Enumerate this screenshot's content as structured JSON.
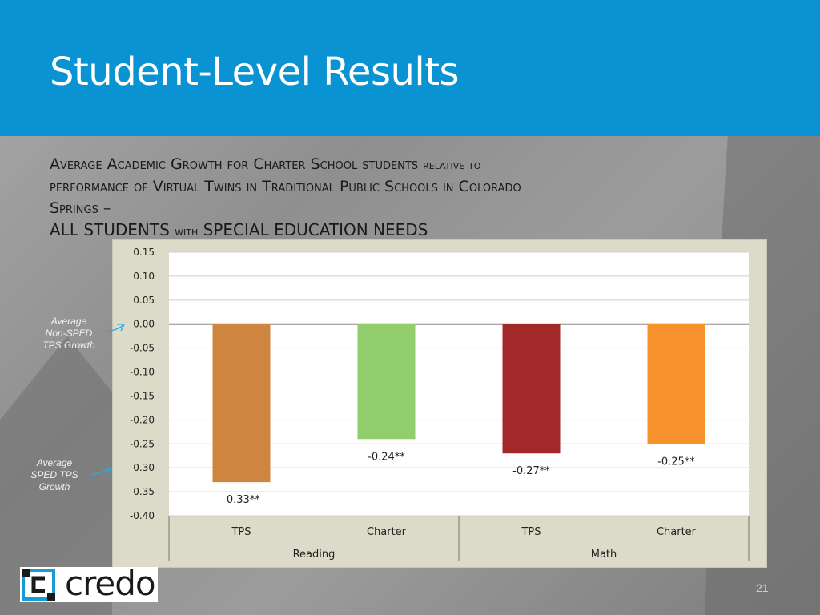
{
  "header": {
    "title": "Student-Level Results"
  },
  "subtitle": {
    "line1a": "Average Academic Growth for Charter School students",
    "line1b": "relative to",
    "line2": "performance of Virtual Twins in Traditional Public Schools in Colorado",
    "line3": "Springs –",
    "line4a": "ALL STUDENTS",
    "line4b": "with",
    "line4c": "SPECIAL EDUCATION NEEDS"
  },
  "annotations": {
    "non_sped_line1": "Average",
    "non_sped_line2": "Non-SPED",
    "non_sped_line3": "TPS Growth",
    "sped_line1": "Average",
    "sped_line2": "SPED TPS",
    "sped_line3": "Growth"
  },
  "colors": {
    "header_bg": "#0a93d2",
    "annotation_arrow": "#2aa9e0"
  },
  "chart_data": {
    "type": "bar",
    "ylim": [
      -0.4,
      0.15
    ],
    "ytick_step": 0.05,
    "grid": true,
    "yticks": [
      "0.15",
      "0.10",
      "0.05",
      "0.00",
      "-0.05",
      "-0.10",
      "-0.15",
      "-0.20",
      "-0.25",
      "-0.30",
      "-0.35",
      "-0.40"
    ],
    "groups": [
      "Reading",
      "Math"
    ],
    "categories": [
      "TPS",
      "Charter",
      "TPS",
      "Charter"
    ],
    "values": [
      -0.33,
      -0.24,
      -0.27,
      -0.25
    ],
    "data_labels": [
      "-0.33**",
      "-0.24**",
      "-0.27**",
      "-0.25**"
    ],
    "bar_colors": [
      "#cd853f",
      "#92cd6b",
      "#a3282a",
      "#f7922d"
    ]
  },
  "logo": {
    "text": "credo"
  },
  "page_number": "21"
}
